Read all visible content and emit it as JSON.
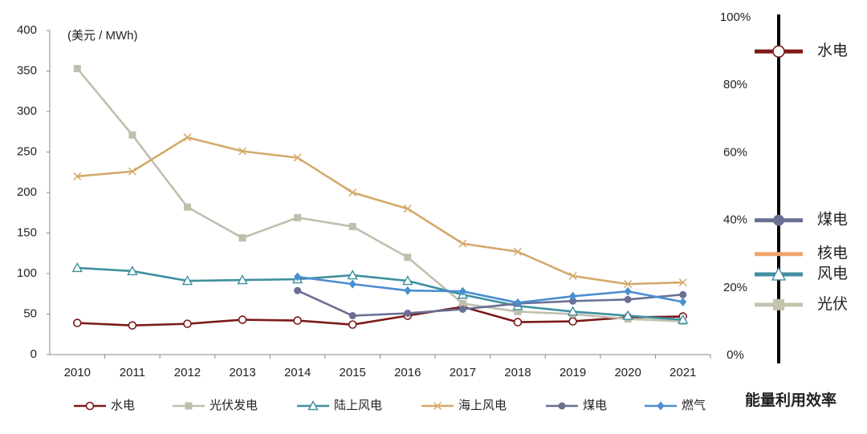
{
  "chart_data": [
    {
      "type": "line",
      "annotation": "(美元 / MWh)",
      "categories": [
        "2010",
        "2011",
        "2012",
        "2013",
        "2014",
        "2015",
        "2016",
        "2017",
        "2018",
        "2019",
        "2020",
        "2021"
      ],
      "ylim": [
        0,
        400
      ],
      "yticks": [
        0,
        50,
        100,
        150,
        200,
        250,
        300,
        350,
        400
      ],
      "legend": "bottom",
      "series": [
        {
          "name": "水电",
          "color": "#7b1a1a",
          "marker": "circle-open",
          "values": [
            39,
            36,
            38,
            43,
            42,
            37,
            48,
            59,
            40,
            41,
            46,
            47
          ]
        },
        {
          "name": "光伏发电",
          "color": "#bfbfad",
          "marker": "square",
          "values": [
            353,
            271,
            182,
            144,
            169,
            158,
            120,
            63,
            53,
            50,
            44,
            41
          ]
        },
        {
          "name": "陆上风电",
          "color": "#3f8f9f",
          "marker": "triangle-open",
          "values": [
            107,
            103,
            91,
            92,
            93,
            98,
            91,
            74,
            60,
            53,
            48,
            43
          ]
        },
        {
          "name": "海上风电",
          "color": "#d4a96a",
          "marker": "x",
          "values": [
            220,
            226,
            268,
            251,
            243,
            200,
            180,
            137,
            127,
            97,
            87,
            89
          ]
        },
        {
          "name": "煤电",
          "color": "#6a6f93",
          "marker": "circle",
          "values": [
            null,
            null,
            null,
            null,
            79,
            48,
            51,
            56,
            63,
            66,
            68,
            74
          ]
        },
        {
          "name": "燃气",
          "color": "#4a8ed0",
          "marker": "diamond",
          "values": [
            null,
            null,
            null,
            null,
            96,
            87,
            79,
            78,
            64,
            72,
            78,
            65
          ]
        }
      ]
    },
    {
      "type": "scale",
      "xlabel": "能量利用效率",
      "ylim": [
        0,
        100
      ],
      "yticks": [
        {
          "value": 0,
          "label": "0%"
        },
        {
          "value": 20,
          "label": "20%"
        },
        {
          "value": 40,
          "label": "40%"
        },
        {
          "value": 60,
          "label": "60%"
        },
        {
          "value": 80,
          "label": "80%"
        },
        {
          "value": 100,
          "label": "100%"
        }
      ],
      "categories": [
        "水电",
        "煤电",
        "核电",
        "风电",
        "光伏"
      ],
      "values": [
        90,
        40,
        30,
        24,
        15
      ],
      "colors": [
        "#7b1a1a",
        "#6a6f93",
        "#f0a56b",
        "#3f8f9f",
        "#c4c4ae"
      ],
      "markers": [
        "circle-open",
        "circle",
        "none",
        "triangle-open",
        "square"
      ]
    }
  ]
}
